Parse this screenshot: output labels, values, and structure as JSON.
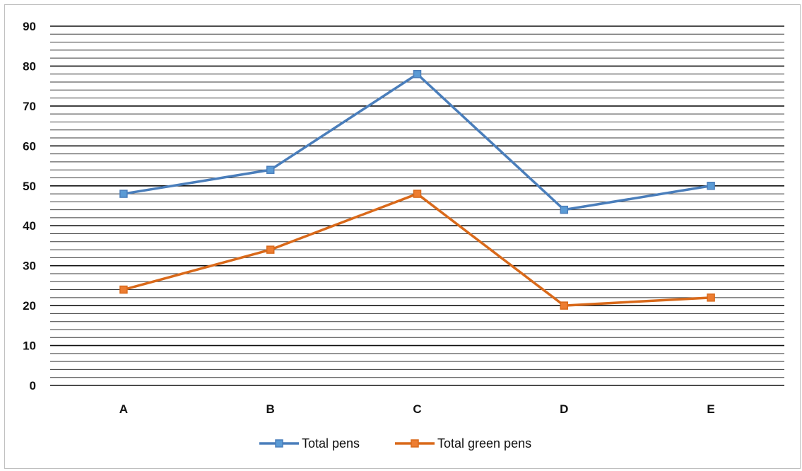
{
  "chart_data": {
    "type": "line",
    "title": "",
    "xlabel": "",
    "ylabel": "",
    "categories": [
      "A",
      "B",
      "C",
      "D",
      "E"
    ],
    "ylim": [
      0,
      90
    ],
    "y_major_ticks": [
      0,
      10,
      20,
      30,
      40,
      50,
      60,
      70,
      80,
      90
    ],
    "y_minor_step": 2,
    "grid": true,
    "legend_position": "bottom",
    "series": [
      {
        "name": "Total pens",
        "values": [
          48,
          54,
          78,
          44,
          50
        ],
        "color": "#4a7ebb",
        "marker_fill": "#5b9bd5"
      },
      {
        "name": "Total green pens",
        "values": [
          24,
          34,
          48,
          20,
          22
        ],
        "color": "#d9691a",
        "marker_fill": "#ed7d31"
      }
    ]
  }
}
